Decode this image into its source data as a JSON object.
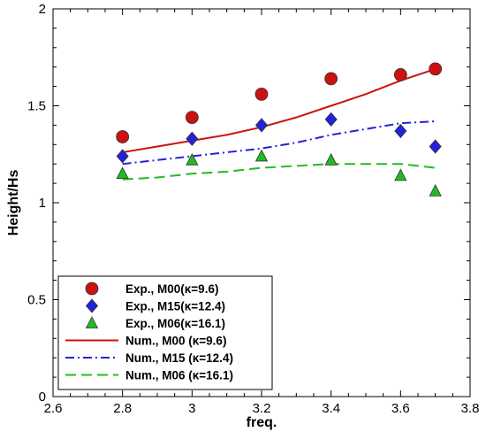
{
  "chart_data": {
    "type": "scatter",
    "xlabel": "freq.",
    "ylabel": "Height/Hs",
    "xlim": [
      2.6,
      3.8
    ],
    "ylim": [
      0,
      2
    ],
    "xticks": [
      "2.6",
      "2.8",
      "3",
      "3.2",
      "3.4",
      "3.6",
      "3.8"
    ],
    "yticks": [
      "0",
      "0.5",
      "1",
      "1.5",
      "2"
    ],
    "grid": false,
    "legend_position": "bottom-left",
    "series": [
      {
        "name": "Exp., M00(κ=9.6)",
        "kind": "marker",
        "marker": "circle",
        "color": "#cc1111",
        "x": [
          2.8,
          3.0,
          3.2,
          3.4,
          3.6,
          3.7
        ],
        "y": [
          1.34,
          1.44,
          1.56,
          1.64,
          1.66,
          1.69
        ]
      },
      {
        "name": "Exp., M15(κ=12.4)",
        "kind": "marker",
        "marker": "diamond",
        "color": "#2222dd",
        "x": [
          2.8,
          3.0,
          3.2,
          3.4,
          3.6,
          3.7
        ],
        "y": [
          1.24,
          1.33,
          1.4,
          1.43,
          1.37,
          1.29
        ]
      },
      {
        "name": "Exp., M06(κ=16.1)",
        "kind": "marker",
        "marker": "triangle",
        "color": "#22bb22",
        "x": [
          2.8,
          3.0,
          3.2,
          3.4,
          3.6,
          3.7
        ],
        "y": [
          1.15,
          1.22,
          1.24,
          1.22,
          1.14,
          1.06
        ]
      },
      {
        "name": "Num., M00 (κ=9.6)",
        "kind": "line",
        "dash": "solid",
        "color": "#cc1111",
        "x": [
          2.8,
          2.9,
          3.0,
          3.1,
          3.2,
          3.3,
          3.4,
          3.5,
          3.6,
          3.7
        ],
        "y": [
          1.26,
          1.29,
          1.32,
          1.35,
          1.39,
          1.44,
          1.5,
          1.56,
          1.63,
          1.69
        ]
      },
      {
        "name": "Num., M15 (κ=12.4)",
        "kind": "line",
        "dash": "dashdot",
        "color": "#2222dd",
        "x": [
          2.8,
          2.9,
          3.0,
          3.1,
          3.2,
          3.3,
          3.4,
          3.5,
          3.6,
          3.7
        ],
        "y": [
          1.2,
          1.22,
          1.24,
          1.26,
          1.28,
          1.31,
          1.35,
          1.38,
          1.41,
          1.42
        ]
      },
      {
        "name": "Num., M06 (κ=16.1)",
        "kind": "line",
        "dash": "dashed",
        "color": "#22bb22",
        "x": [
          2.8,
          2.9,
          3.0,
          3.1,
          3.2,
          3.3,
          3.4,
          3.5,
          3.6,
          3.7
        ],
        "y": [
          1.12,
          1.13,
          1.15,
          1.16,
          1.18,
          1.19,
          1.2,
          1.2,
          1.2,
          1.18
        ]
      }
    ]
  }
}
